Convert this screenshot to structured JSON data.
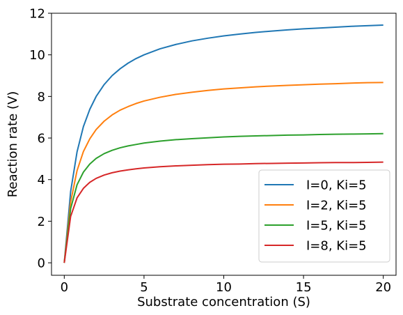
{
  "chart_data": {
    "type": "line",
    "title": "",
    "xlabel": "Substrate concentration (S)",
    "ylabel": "Reaction rate (V)",
    "xlim": [
      -0.8,
      20.8
    ],
    "ylim": [
      -0.6,
      12
    ],
    "xticks": [
      0,
      5,
      10,
      15,
      20
    ],
    "yticks": [
      0,
      2,
      4,
      6,
      8,
      10,
      12
    ],
    "xtick_labels": [
      "0",
      "5",
      "10",
      "15",
      "20"
    ],
    "ytick_labels": [
      "0",
      "2",
      "4",
      "6",
      "8",
      "10",
      "12"
    ],
    "grid": false,
    "legend_position": "lower-right",
    "x": [
      0,
      0.4,
      0.8,
      1.2,
      1.6,
      2,
      2.5,
      3,
      3.5,
      4,
      4.5,
      5,
      6,
      7,
      8,
      9,
      10,
      11,
      12,
      13,
      14,
      15,
      16,
      17,
      18,
      19,
      20
    ],
    "series": [
      {
        "name": "I=0, Ki=5",
        "color": "#1f77b4",
        "values": [
          0,
          3.43,
          5.33,
          6.55,
          7.38,
          8.0,
          8.57,
          9.0,
          9.33,
          9.6,
          9.82,
          10.0,
          10.29,
          10.5,
          10.67,
          10.8,
          10.91,
          11.0,
          11.08,
          11.14,
          11.2,
          11.25,
          11.29,
          11.33,
          11.37,
          11.4,
          11.43
        ]
      },
      {
        "name": "I=2, Ki=5",
        "color": "#ff7f0e",
        "values": [
          0,
          2.93,
          4.43,
          5.35,
          5.96,
          6.41,
          6.81,
          7.11,
          7.34,
          7.51,
          7.66,
          7.78,
          7.96,
          8.1,
          8.2,
          8.29,
          8.36,
          8.41,
          8.46,
          8.5,
          8.53,
          8.56,
          8.59,
          8.61,
          8.64,
          8.66,
          8.67
        ]
      },
      {
        "name": "I=5, Ki=5",
        "color": "#2ca02c",
        "values": [
          0,
          2.61,
          3.75,
          4.36,
          4.75,
          5.02,
          5.25,
          5.41,
          5.53,
          5.62,
          5.69,
          5.76,
          5.85,
          5.92,
          5.97,
          6.01,
          6.05,
          6.08,
          6.1,
          6.12,
          6.14,
          6.15,
          6.17,
          6.18,
          6.19,
          6.2,
          6.21
        ]
      },
      {
        "name": "I=8, Ki=5",
        "color": "#d62728",
        "values": [
          0,
          2.23,
          3.12,
          3.58,
          3.87,
          4.06,
          4.22,
          4.33,
          4.41,
          4.47,
          4.52,
          4.56,
          4.62,
          4.66,
          4.69,
          4.72,
          4.74,
          4.75,
          4.77,
          4.78,
          4.79,
          4.8,
          4.81,
          4.82,
          4.82,
          4.83,
          4.84
        ]
      }
    ]
  }
}
